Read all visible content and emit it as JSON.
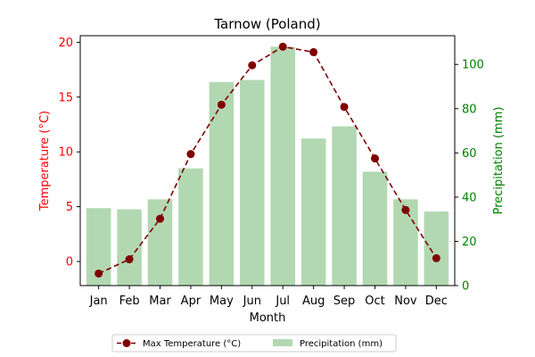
{
  "chart_data": {
    "type": "bar+line",
    "title": "Tarnow (Poland)",
    "xlabel": "Month",
    "categories": [
      "Jan",
      "Feb",
      "Mar",
      "Apr",
      "May",
      "Jun",
      "Jul",
      "Aug",
      "Sep",
      "Oct",
      "Nov",
      "Dec"
    ],
    "y_left": {
      "label": "Temperature (°C)",
      "ticks": [
        0,
        5,
        10,
        15,
        20
      ],
      "ylim": [
        -2.2,
        20.6
      ],
      "color": "#ff0000"
    },
    "y_right": {
      "label": "Precipitation (mm)",
      "ticks": [
        0,
        20,
        40,
        60,
        80,
        100
      ],
      "ylim": [
        0,
        113
      ],
      "color": "#008000"
    },
    "series": [
      {
        "name": "Max Temperature (°C)",
        "kind": "line",
        "axis": "left",
        "color": "#800000",
        "linestyle": "dashed",
        "marker": "circle",
        "values": [
          -1.1,
          0.2,
          3.9,
          9.8,
          14.3,
          17.9,
          19.6,
          19.1,
          14.1,
          9.4,
          4.7,
          0.3
        ]
      },
      {
        "name": "Precipitation (mm)",
        "kind": "bar",
        "axis": "right",
        "color": "#b2d8b2",
        "values": [
          35,
          34.5,
          39,
          53,
          92,
          93,
          108,
          66.5,
          72,
          51.5,
          39,
          33.5
        ]
      }
    ],
    "legend": {
      "placement": "bottom-center",
      "entries": [
        "Max Temperature (°C)",
        "Precipitation (mm)"
      ]
    },
    "grid": false
  }
}
